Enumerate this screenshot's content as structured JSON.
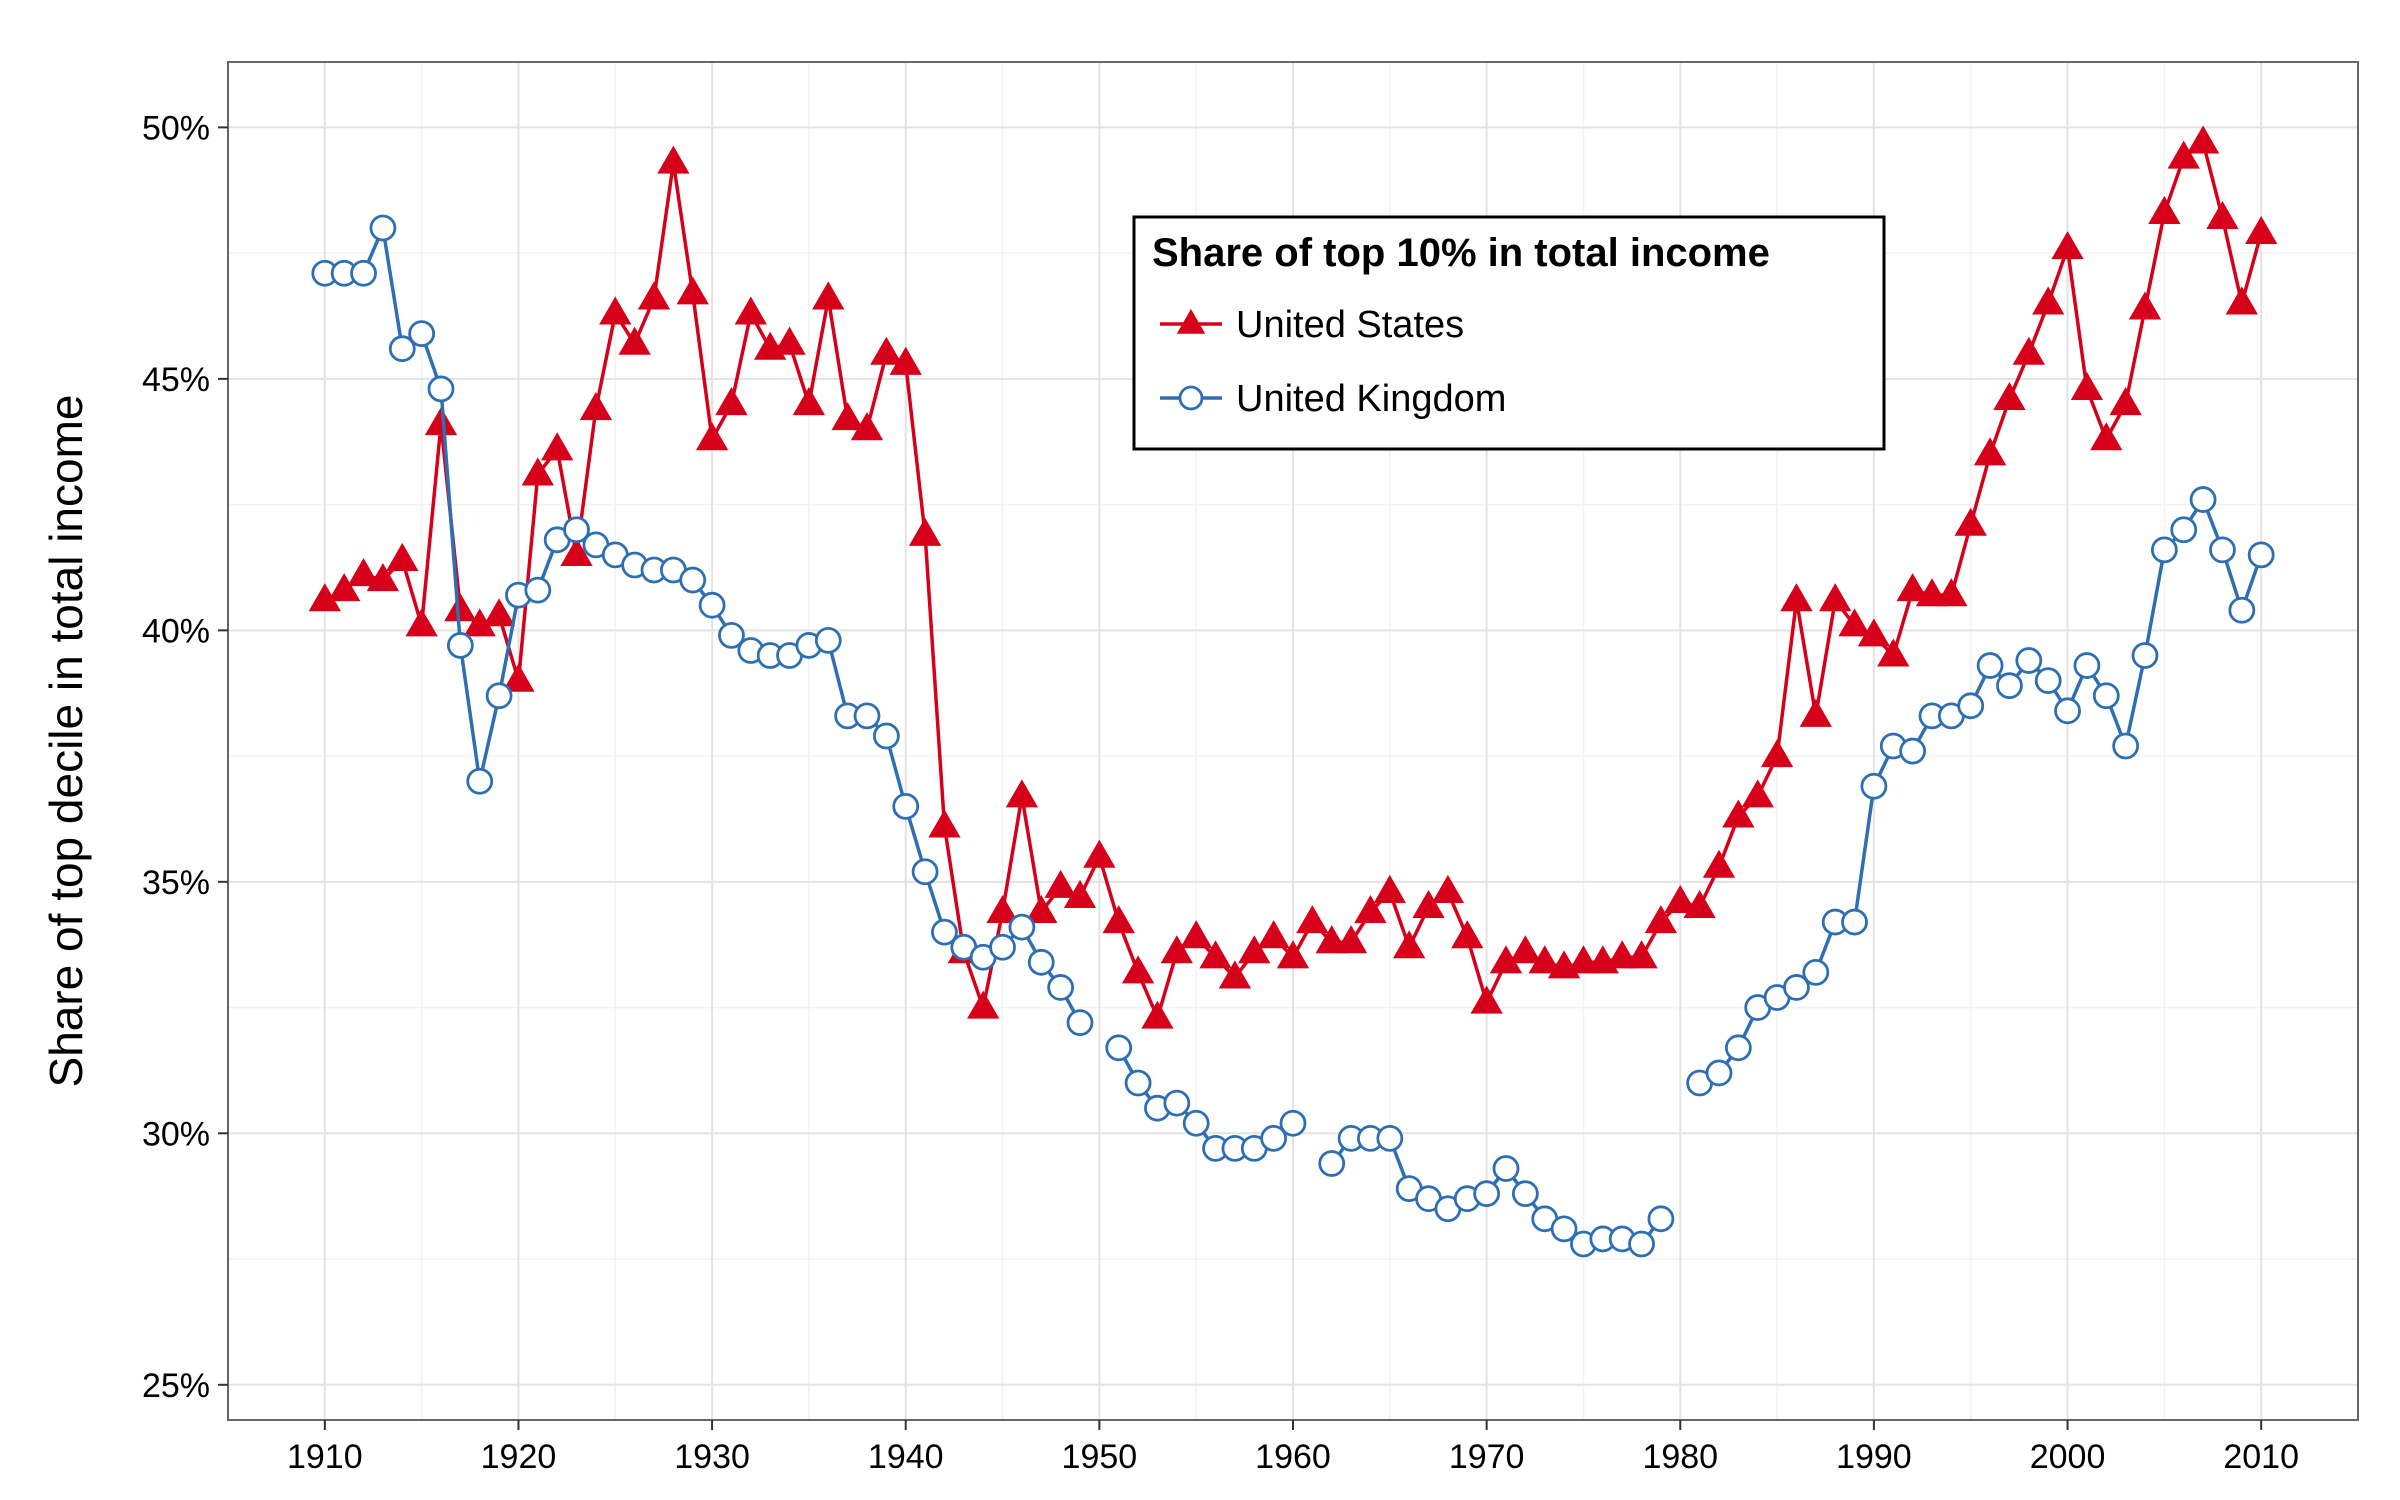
{
  "chart_data": {
    "type": "line",
    "ylabel": "Share of top decile in total income",
    "xlabel": "",
    "xlim": [
      1905,
      2015
    ],
    "ylim": [
      24.3,
      51.3
    ],
    "x_ticks": [
      1910,
      1920,
      1930,
      1940,
      1950,
      1960,
      1970,
      1980,
      1990,
      2000,
      2010
    ],
    "y_ticks": [
      25,
      30,
      35,
      40,
      45,
      50
    ],
    "y_tick_labels": [
      "25%",
      "30%",
      "35%",
      "40%",
      "45%",
      "50%"
    ],
    "grid": true,
    "legend": {
      "title": "Share of top 10% in total income",
      "position": "top-center"
    },
    "series": [
      {
        "name": "United States",
        "color": "#d7001a",
        "marker": "triangle",
        "x": [
          1910,
          1911,
          1912,
          1913,
          1914,
          1915,
          1916,
          1917,
          1918,
          1919,
          1920,
          1921,
          1922,
          1923,
          1924,
          1925,
          1926,
          1927,
          1928,
          1929,
          1930,
          1931,
          1932,
          1933,
          1934,
          1935,
          1936,
          1937,
          1938,
          1939,
          1940,
          1941,
          1942,
          1943,
          1944,
          1945,
          1946,
          1947,
          1948,
          1949,
          1950,
          1951,
          1952,
          1953,
          1954,
          1955,
          1956,
          1957,
          1958,
          1959,
          1960,
          1961,
          1962,
          1963,
          1964,
          1965,
          1966,
          1967,
          1968,
          1969,
          1970,
          1971,
          1972,
          1973,
          1974,
          1975,
          1976,
          1977,
          1978,
          1979,
          1980,
          1981,
          1982,
          1983,
          1984,
          1985,
          1986,
          1987,
          1988,
          1989,
          1990,
          1991,
          1992,
          1993,
          1994,
          1995,
          1996,
          1997,
          1998,
          1999,
          2000,
          2001,
          2002,
          2003,
          2004,
          2005,
          2006,
          2007,
          2008,
          2009,
          2010
        ],
        "y": [
          40.6,
          40.8,
          41.1,
          41.0,
          41.4,
          40.1,
          44.1,
          40.4,
          40.1,
          40.3,
          39.0,
          43.1,
          43.6,
          41.5,
          44.4,
          46.3,
          45.7,
          46.6,
          49.3,
          46.7,
          43.8,
          44.5,
          46.3,
          45.6,
          45.7,
          44.5,
          46.6,
          44.2,
          44.0,
          45.5,
          45.3,
          41.9,
          36.1,
          33.6,
          32.5,
          34.4,
          36.7,
          34.4,
          34.9,
          34.7,
          35.5,
          34.2,
          33.2,
          32.3,
          33.6,
          33.9,
          33.5,
          33.1,
          33.6,
          33.9,
          33.5,
          34.2,
          33.8,
          33.8,
          34.4,
          34.8,
          33.7,
          34.5,
          34.8,
          33.9,
          32.6,
          33.4,
          33.6,
          33.4,
          33.3,
          33.4,
          33.4,
          33.5,
          33.5,
          34.2,
          34.6,
          34.5,
          35.3,
          36.3,
          36.7,
          37.5,
          40.6,
          38.3,
          40.6,
          40.1,
          39.9,
          39.5,
          40.8,
          40.7,
          40.7,
          42.1,
          43.5,
          44.6,
          45.5,
          46.5,
          47.6,
          44.8,
          43.8,
          44.5,
          46.4,
          48.3,
          49.4,
          49.7,
          48.2,
          46.5,
          47.9
        ]
      },
      {
        "name": "United Kingdom",
        "color": "#2e6fb3",
        "marker": "circle",
        "x": [
          1910,
          1911,
          1912,
          1913,
          1914,
          1915,
          1916,
          1917,
          1918,
          1919,
          1920,
          1921,
          1922,
          1923,
          1924,
          1925,
          1926,
          1927,
          1928,
          1929,
          1930,
          1931,
          1932,
          1933,
          1934,
          1935,
          1936,
          1937,
          1938,
          1939,
          1940,
          1941,
          1942,
          1943,
          1944,
          1945,
          1946,
          1947,
          1948,
          1949,
          1950,
          1951,
          1952,
          1953,
          1954,
          1955,
          1956,
          1957,
          1958,
          1959,
          1960,
          1961,
          1962,
          1963,
          1964,
          1965,
          1966,
          1967,
          1968,
          1969,
          1970,
          1971,
          1972,
          1973,
          1974,
          1975,
          1976,
          1977,
          1978,
          1979,
          1980,
          1981,
          1982,
          1983,
          1984,
          1985,
          1986,
          1987,
          1988,
          1989,
          1990,
          1991,
          1992,
          1993,
          1994,
          1995,
          1996,
          1997,
          1998,
          1999,
          2000,
          2001,
          2002,
          2003,
          2004,
          2005,
          2006,
          2007,
          2008,
          2009,
          2010
        ],
        "y": [
          47.1,
          47.1,
          47.1,
          48.0,
          45.6,
          45.9,
          44.8,
          39.7,
          37.0,
          38.7,
          40.7,
          40.8,
          41.8,
          42.0,
          41.7,
          41.5,
          41.3,
          41.2,
          41.2,
          41.0,
          40.5,
          39.9,
          39.6,
          39.5,
          39.5,
          39.7,
          39.8,
          38.3,
          38.3,
          37.9,
          36.5,
          35.2,
          34.0,
          33.7,
          33.5,
          33.7,
          34.1,
          33.4,
          32.9,
          32.2,
          null,
          31.7,
          31.0,
          30.5,
          30.6,
          30.2,
          29.7,
          29.7,
          29.7,
          29.9,
          30.2,
          null,
          29.4,
          29.9,
          29.9,
          29.9,
          28.9,
          28.7,
          28.5,
          28.7,
          28.8,
          29.3,
          28.8,
          28.3,
          28.1,
          27.8,
          27.9,
          27.9,
          27.8,
          28.3,
          null,
          31.0,
          31.2,
          31.7,
          32.5,
          32.7,
          32.9,
          33.2,
          34.2,
          34.2,
          36.9,
          37.7,
          37.6,
          38.3,
          38.3,
          38.5,
          39.3,
          38.9,
          39.4,
          39.0,
          38.4,
          39.3,
          38.7,
          37.7,
          39.5,
          41.6,
          42.0,
          42.6,
          41.6,
          40.4,
          41.5
        ]
      }
    ]
  }
}
